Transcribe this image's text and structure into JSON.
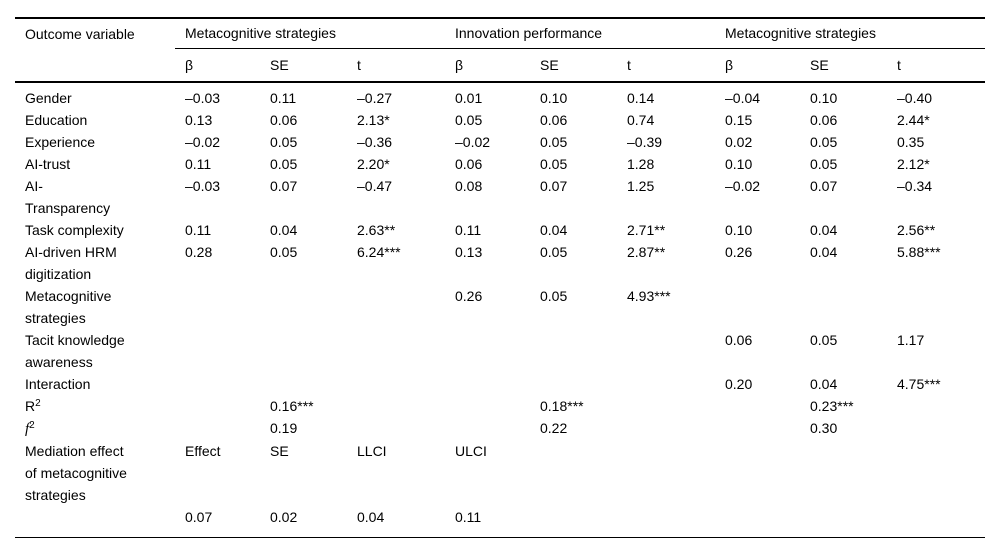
{
  "table": {
    "header": {
      "outcome_label": "Outcome variable",
      "groups": [
        {
          "label": "Metacognitive strategies"
        },
        {
          "label": "Innovation performance"
        },
        {
          "label": "Metacognitive strategies"
        }
      ],
      "subheaders": [
        "β",
        "SE",
        "t",
        "β",
        "SE",
        "t",
        "β",
        "SE",
        "t"
      ]
    },
    "rows": [
      {
        "label_lines": [
          "Gender"
        ],
        "cells": [
          "–0.03",
          "0.11",
          "–0.27",
          "0.01",
          "0.10",
          "0.14",
          "–0.04",
          "0.10",
          "–0.40"
        ]
      },
      {
        "label_lines": [
          "Education"
        ],
        "cells": [
          "0.13",
          "0.06",
          "2.13*",
          "0.05",
          "0.06",
          "0.74",
          "0.15",
          "0.06",
          "2.44*"
        ]
      },
      {
        "label_lines": [
          "Experience"
        ],
        "cells": [
          "–0.02",
          "0.05",
          "–0.36",
          "–0.02",
          "0.05",
          "–0.39",
          "0.02",
          "0.05",
          "0.35"
        ]
      },
      {
        "label_lines": [
          "AI-trust"
        ],
        "cells": [
          "0.11",
          "0.05",
          "2.20*",
          "0.06",
          "0.05",
          "1.28",
          "0.10",
          "0.05",
          "2.12*"
        ]
      },
      {
        "label_lines": [
          "AI-",
          "Transparency"
        ],
        "cells": [
          "–0.03",
          "0.07",
          "–0.47",
          "0.08",
          "0.07",
          "1.25",
          "–0.02",
          "0.07",
          "–0.34"
        ]
      },
      {
        "label_lines": [
          "Task complexity"
        ],
        "cells": [
          "0.11",
          "0.04",
          "2.63**",
          "0.11",
          "0.04",
          "2.71**",
          "0.10",
          "0.04",
          "2.56**"
        ]
      },
      {
        "label_lines": [
          "AI-driven HRM",
          "digitization"
        ],
        "cells": [
          "0.28",
          "0.05",
          "6.24***",
          "0.13",
          "0.05",
          "2.87**",
          "0.26",
          "0.04",
          "5.88***"
        ]
      },
      {
        "label_lines": [
          "Metacognitive",
          "strategies"
        ],
        "cells": [
          "",
          "",
          "",
          "0.26",
          "0.05",
          "4.93***",
          "",
          "",
          ""
        ]
      },
      {
        "label_lines": [
          "Tacit knowledge",
          "awareness"
        ],
        "cells": [
          "",
          "",
          "",
          "",
          "",
          "",
          "0.06",
          "0.05",
          "1.17"
        ]
      },
      {
        "label_lines": [
          "Interaction"
        ],
        "cells": [
          "",
          "",
          "",
          "",
          "",
          "",
          "0.20",
          "0.04",
          "4.75***"
        ]
      },
      {
        "label_base": "R",
        "label_sup": "2",
        "label_italic": false,
        "cells": [
          "",
          "0.16***",
          "",
          "",
          "0.18***",
          "",
          "",
          "0.23***",
          ""
        ]
      },
      {
        "label_base": "f",
        "label_sup": "2",
        "label_italic": true,
        "cells": [
          "",
          "0.19",
          "",
          "",
          "0.22",
          "",
          "",
          "0.30",
          ""
        ]
      },
      {
        "label_lines": [
          "Mediation effect",
          "of metacognitive",
          "strategies"
        ],
        "cells": [
          "Effect",
          "SE",
          "LLCI",
          "ULCI",
          "",
          "",
          "",
          "",
          ""
        ]
      },
      {
        "label_lines": [
          ""
        ],
        "cells": [
          "0.07",
          "0.02",
          "0.04",
          "0.11",
          "",
          "",
          "",
          "",
          ""
        ]
      }
    ]
  }
}
